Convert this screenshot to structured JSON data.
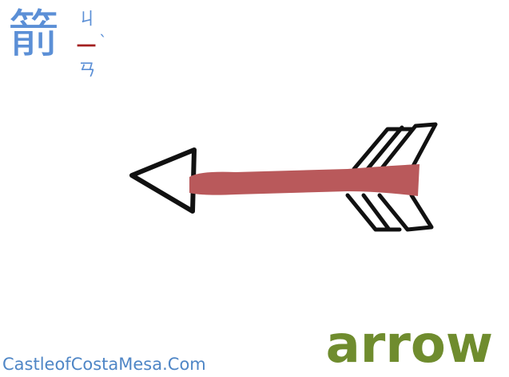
{
  "character": "箭",
  "zhuyin": {
    "initial": "ㄐ",
    "medial": "一",
    "final": "ㄢ",
    "tone": "ˋ"
  },
  "word": "arrow",
  "site": "CastleofCostaMesa.Com",
  "colors": {
    "character": "#5b8fd6",
    "medial": "#a32020",
    "shaft": "#b9595b",
    "outline": "#111111",
    "word": "#6f8c2e",
    "site": "#4f86c6"
  }
}
